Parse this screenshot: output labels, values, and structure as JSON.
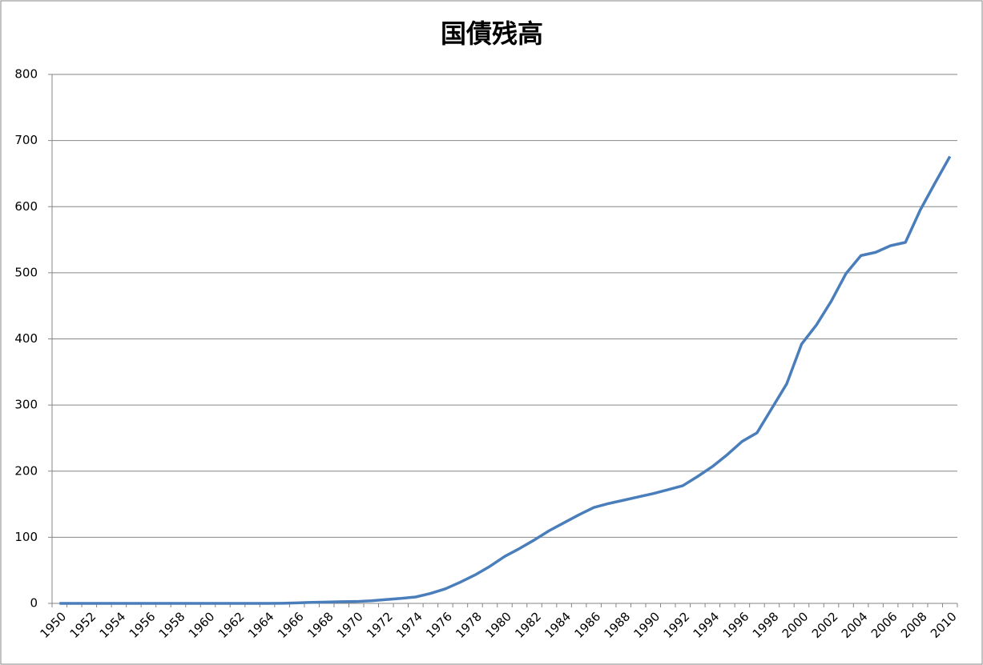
{
  "chart_data": {
    "type": "line",
    "title": "国債残高",
    "categories": [
      "1950",
      null,
      "1952",
      null,
      "1954",
      null,
      "1956",
      null,
      "1958",
      null,
      "1960",
      null,
      "1962",
      null,
      "1964",
      null,
      "1966",
      null,
      "1968",
      null,
      "1970",
      null,
      "1972",
      null,
      "1974",
      null,
      "1976",
      null,
      "1978",
      null,
      "1980",
      null,
      "1982",
      null,
      "1984",
      null,
      "1986",
      null,
      "1988",
      null,
      "1990",
      null,
      "1992",
      null,
      "1994",
      null,
      "1996",
      null,
      "1998",
      null,
      "2000",
      null,
      "2002",
      null,
      "2004",
      null,
      "2006",
      null,
      "2008",
      null,
      "2010"
    ],
    "series": [
      {
        "color": "#4a7ebb",
        "values": [
          0,
          0,
          0,
          0,
          0,
          0,
          0,
          0,
          0,
          0,
          0,
          0,
          0,
          0,
          0,
          0.2,
          0.7,
          1.5,
          1.9,
          2.6,
          2.8,
          4,
          5.8,
          7.5,
          9.7,
          15,
          22,
          32,
          43,
          56,
          71,
          83,
          96,
          110,
          122,
          134,
          145,
          151,
          156,
          161,
          166,
          172,
          178,
          192,
          207,
          225,
          245,
          258,
          295,
          332,
          392,
          421,
          457,
          499,
          526,
          531,
          541,
          546,
          595,
          636,
          676
        ]
      }
    ],
    "ylim": [
      0,
      800
    ],
    "yticks": [
      0,
      100,
      200,
      300,
      400,
      500,
      600,
      700,
      800
    ],
    "grid": true
  }
}
